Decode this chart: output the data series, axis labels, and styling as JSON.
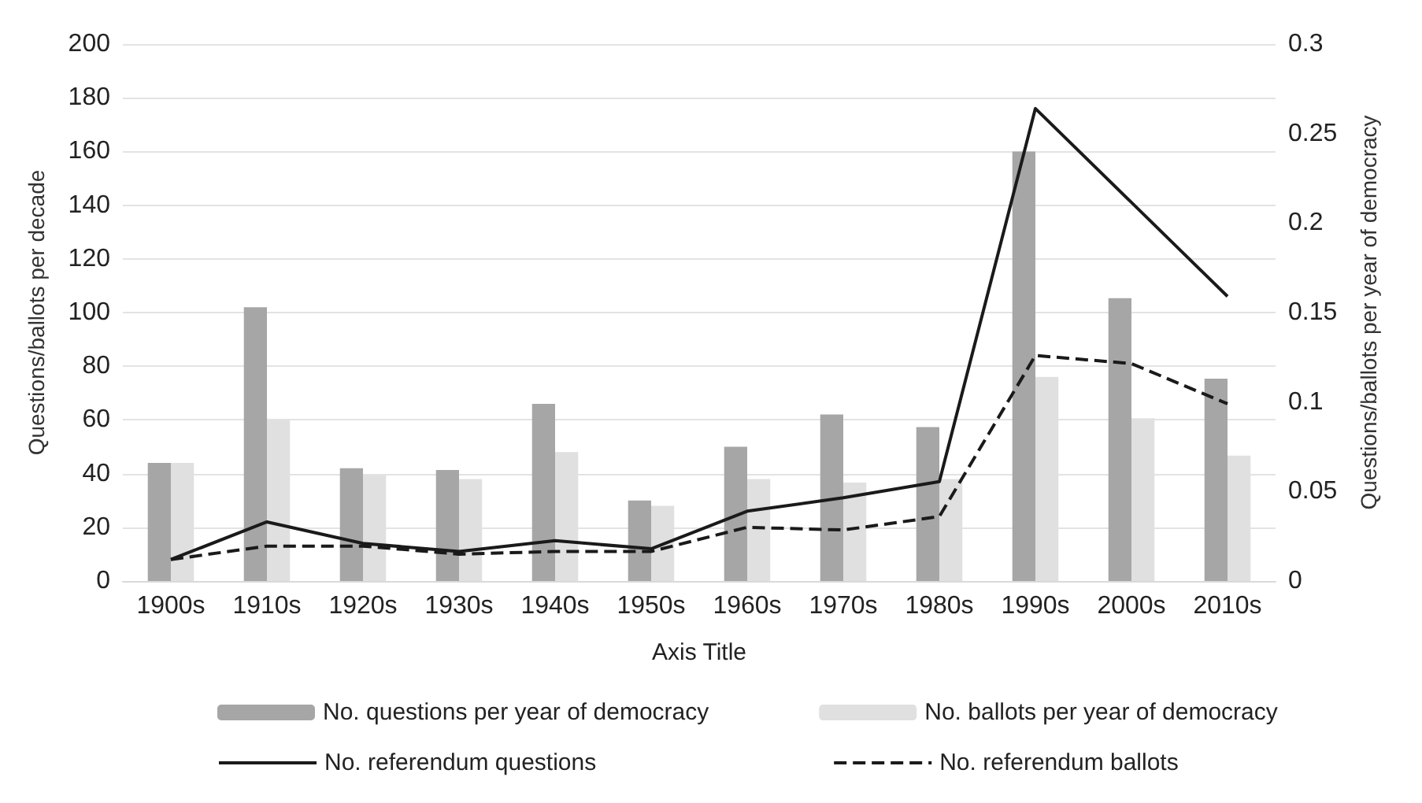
{
  "chart_data": {
    "type": "bar",
    "xlabel": "Axis Title",
    "ylabel": "Questions/ballots per decade",
    "y2label": "Questions/ballots per year of democracy",
    "categories": [
      "1900s",
      "1910s",
      "1920s",
      "1930s",
      "1940s",
      "1950s",
      "1960s",
      "1970s",
      "1980s",
      "1990s",
      "2000s",
      "2010s"
    ],
    "series": [
      {
        "name": "No. questions per year of democracy",
        "axis": "y2",
        "color": "#a6a6a6",
        "values": [
          0.066,
          0.153,
          0.063,
          0.062,
          0.099,
          0.045,
          0.075,
          0.093,
          0.086,
          0.24,
          0.158,
          0.113
        ]
      },
      {
        "name": "No. ballots per year of democracy",
        "axis": "y2",
        "color": "#e0e0e0",
        "values": [
          0.066,
          0.09,
          0.059,
          0.057,
          0.072,
          0.042,
          0.057,
          0.055,
          0.057,
          0.114,
          0.091,
          0.07
        ]
      },
      {
        "name": "No. referendum questions",
        "type": "line",
        "color": "#1a1a1a",
        "line_style": "solid",
        "values": [
          8,
          22,
          14,
          11,
          15,
          12,
          26,
          31,
          37,
          176,
          141,
          106
        ]
      },
      {
        "name": "No. referendum ballots",
        "type": "line",
        "color": "#1a1a1a",
        "line_style": "dashed",
        "values": [
          8,
          13,
          13,
          10,
          11,
          11,
          20,
          19,
          24,
          84,
          81,
          66
        ]
      }
    ],
    "ylim": [
      0,
      200
    ],
    "yticks": [
      0,
      20,
      40,
      60,
      80,
      100,
      120,
      140,
      160,
      180,
      200
    ],
    "y2lim": [
      0,
      0.3
    ],
    "y2ticks": [
      0,
      0.05,
      0.1,
      0.15,
      0.2,
      0.25,
      0.3
    ],
    "grid": "y",
    "legend": "bottom",
    "marker": "none"
  }
}
